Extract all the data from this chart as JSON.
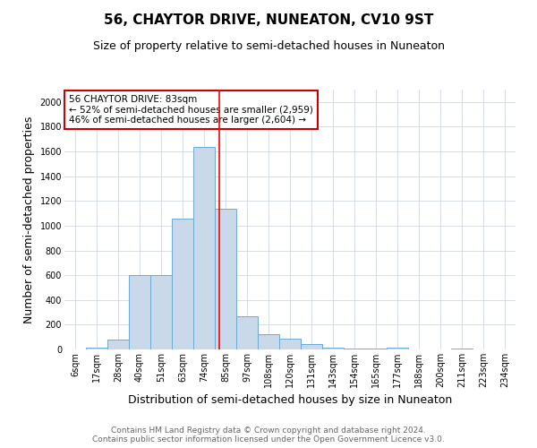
{
  "title": "56, CHAYTOR DRIVE, NUNEATON, CV10 9ST",
  "subtitle": "Size of property relative to semi-detached houses in Nuneaton",
  "xlabel": "Distribution of semi-detached houses by size in Nuneaton",
  "ylabel": "Number of semi-detached properties",
  "bin_labels": [
    "6sqm",
    "17sqm",
    "28sqm",
    "40sqm",
    "51sqm",
    "63sqm",
    "74sqm",
    "85sqm",
    "97sqm",
    "108sqm",
    "120sqm",
    "131sqm",
    "143sqm",
    "154sqm",
    "165sqm",
    "177sqm",
    "188sqm",
    "200sqm",
    "211sqm",
    "223sqm",
    "234sqm"
  ],
  "bar_heights": [
    0,
    15,
    80,
    600,
    600,
    1060,
    1640,
    1140,
    270,
    120,
    90,
    40,
    15,
    10,
    5,
    15,
    0,
    0,
    10,
    0,
    0
  ],
  "bar_color": "#c9d9ea",
  "bar_edge_color": "#6aaad4",
  "red_line_x": 6.7,
  "annotation_text": "56 CHAYTOR DRIVE: 83sqm\n← 52% of semi-detached houses are smaller (2,959)\n46% of semi-detached houses are larger (2,604) →",
  "annotation_box_color": "#ffffff",
  "annotation_box_edge_color": "#cc0000",
  "ylim": [
    0,
    2100
  ],
  "yticks": [
    0,
    200,
    400,
    600,
    800,
    1000,
    1200,
    1400,
    1600,
    1800,
    2000
  ],
  "footer_text": "Contains HM Land Registry data © Crown copyright and database right 2024.\nContains public sector information licensed under the Open Government Licence v3.0.",
  "title_fontsize": 11,
  "subtitle_fontsize": 9,
  "label_fontsize": 9,
  "tick_fontsize": 7,
  "footer_fontsize": 6.5,
  "bg_color": "#ffffff",
  "grid_color": "#d0d8e0"
}
